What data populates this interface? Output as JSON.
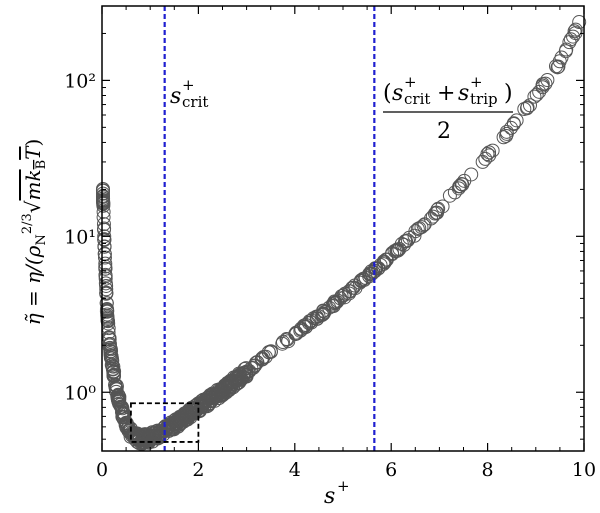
{
  "chart_data": {
    "type": "scatter",
    "title": "",
    "xlabel": "s⁺",
    "ylabel": "η̃ = η/(ρ_N^{2/3} √(m k_B T))",
    "xlim": [
      0,
      10
    ],
    "ylim": [
      0.42,
      300
    ],
    "yscale": "log",
    "x_ticks": [
      0,
      2,
      4,
      6,
      8,
      10
    ],
    "x_tick_labels": [
      "0",
      "2",
      "4",
      "6",
      "8",
      "10"
    ],
    "y_ticks": [
      1,
      10,
      100
    ],
    "y_tick_labels": [
      "10⁰",
      "10¹",
      "10²"
    ],
    "grid": false,
    "marker": "open-circle",
    "marker_color": "#555555",
    "vlines": [
      {
        "x": 1.3,
        "label": "s⁺_crit",
        "color": "#1f1fd0",
        "style": "dashed"
      },
      {
        "x": 5.65,
        "label": "(s⁺_crit + s⁺_trip)/2",
        "color": "#1f1fd0",
        "style": "dashed"
      }
    ],
    "zoom_box": {
      "x": [
        0.6,
        2.0
      ],
      "y": [
        0.48,
        0.85
      ],
      "style": "dashed",
      "color": "#000000"
    },
    "curve": [
      {
        "x": 0.02,
        "y": 19
      },
      {
        "x": 0.05,
        "y": 9
      },
      {
        "x": 0.1,
        "y": 3.6
      },
      {
        "x": 0.15,
        "y": 2.2
      },
      {
        "x": 0.2,
        "y": 1.6
      },
      {
        "x": 0.3,
        "y": 1.05
      },
      {
        "x": 0.4,
        "y": 0.78
      },
      {
        "x": 0.5,
        "y": 0.63
      },
      {
        "x": 0.6,
        "y": 0.55
      },
      {
        "x": 0.7,
        "y": 0.515
      },
      {
        "x": 0.8,
        "y": 0.5
      },
      {
        "x": 1.0,
        "y": 0.51
      },
      {
        "x": 1.2,
        "y": 0.55
      },
      {
        "x": 1.5,
        "y": 0.62
      },
      {
        "x": 2.0,
        "y": 0.8
      },
      {
        "x": 2.5,
        "y": 1.02
      },
      {
        "x": 3.0,
        "y": 1.35
      },
      {
        "x": 3.5,
        "y": 1.8
      },
      {
        "x": 4.0,
        "y": 2.35
      },
      {
        "x": 4.5,
        "y": 3.1
      },
      {
        "x": 5.0,
        "y": 4.1
      },
      {
        "x": 5.5,
        "y": 5.5
      },
      {
        "x": 6.0,
        "y": 7.5
      },
      {
        "x": 6.5,
        "y": 10.5
      },
      {
        "x": 7.0,
        "y": 15
      },
      {
        "x": 7.5,
        "y": 22
      },
      {
        "x": 8.0,
        "y": 33
      },
      {
        "x": 8.5,
        "y": 50
      },
      {
        "x": 9.0,
        "y": 80
      },
      {
        "x": 9.5,
        "y": 130
      },
      {
        "x": 9.9,
        "y": 230
      }
    ]
  }
}
